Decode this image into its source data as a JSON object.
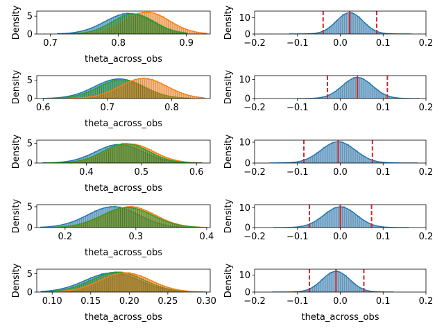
{
  "chart_data": [
    {
      "type": "histogram-kde",
      "row": 0,
      "col": 0,
      "xlabel": "theta_across_obs",
      "ylabel": "Density",
      "xlim": [
        0.68,
        0.935
      ],
      "ylim": [
        0,
        6.4
      ],
      "xticks": [
        {
          "v": 0.7,
          "label": "0.7"
        },
        {
          "v": 0.8,
          "label": "0.8"
        },
        {
          "v": 0.9,
          "label": "0.9"
        }
      ],
      "yticks": [
        {
          "v": 0,
          "label": "0"
        },
        {
          "v": 5,
          "label": "5"
        }
      ],
      "series": [
        {
          "color": "#1f77b4",
          "mean": 0.815,
          "sd": 0.035,
          "peak": 5.7,
          "range": [
            0.71,
            0.9
          ]
        },
        {
          "color": "#ff7f0e",
          "mean": 0.842,
          "sd": 0.033,
          "peak": 6.1,
          "range": [
            0.73,
            0.93
          ]
        },
        {
          "color": "#2ca02c",
          "mean": 0.822,
          "sd": 0.031,
          "peak": 5.6,
          "range": [
            0.72,
            0.9
          ]
        }
      ]
    },
    {
      "type": "histogram-kde",
      "row": 0,
      "col": 1,
      "xlabel": "",
      "ylabel": "Density",
      "xlim": [
        -0.2,
        0.2
      ],
      "ylim": [
        0,
        14
      ],
      "xticks": [
        {
          "v": -0.2,
          "label": "−0.2"
        },
        {
          "v": -0.1,
          "label": "−0.1"
        },
        {
          "v": 0,
          "label": "0.0"
        },
        {
          "v": 0.1,
          "label": "0.1"
        },
        {
          "v": 0.2,
          "label": "0.2"
        }
      ],
      "yticks": [
        {
          "v": 0,
          "label": "0"
        },
        {
          "v": 10,
          "label": "10"
        }
      ],
      "series": [
        {
          "color": "#1f77b4",
          "mean": 0.022,
          "sd": 0.031,
          "peak": 13,
          "range": [
            -0.12,
            0.165
          ]
        }
      ],
      "vlines": [
        {
          "v": -0.04,
          "style": "dashed"
        },
        {
          "v": 0.022,
          "style": "solid"
        },
        {
          "v": 0.085,
          "style": "dashed"
        }
      ]
    },
    {
      "type": "histogram-kde",
      "row": 1,
      "col": 0,
      "xlabel": "theta_across_obs",
      "ylabel": "Density",
      "xlim": [
        0.59,
        0.86
      ],
      "ylim": [
        0,
        6.2
      ],
      "xticks": [
        {
          "v": 0.6,
          "label": "0.6"
        },
        {
          "v": 0.7,
          "label": "0.7"
        },
        {
          "v": 0.8,
          "label": "0.8"
        }
      ],
      "yticks": [
        {
          "v": 0,
          "label": "0"
        },
        {
          "v": 5,
          "label": "5"
        }
      ],
      "series": [
        {
          "color": "#1f77b4",
          "mean": 0.718,
          "sd": 0.038,
          "peak": 5.3,
          "range": [
            0.6,
            0.83
          ]
        },
        {
          "color": "#2ca02c",
          "mean": 0.722,
          "sd": 0.036,
          "peak": 5.1,
          "range": [
            0.61,
            0.83
          ]
        },
        {
          "color": "#ff7f0e",
          "mean": 0.756,
          "sd": 0.037,
          "peak": 5.4,
          "range": [
            0.64,
            0.85
          ]
        }
      ]
    },
    {
      "type": "histogram-kde",
      "row": 1,
      "col": 1,
      "xlabel": "",
      "ylabel": "Density",
      "xlim": [
        -0.2,
        0.2
      ],
      "ylim": [
        0,
        12
      ],
      "xticks": [
        {
          "v": -0.2,
          "label": "−0.2"
        },
        {
          "v": -0.1,
          "label": "−0.1"
        },
        {
          "v": 0,
          "label": "0.0"
        },
        {
          "v": 0.1,
          "label": "0.1"
        },
        {
          "v": 0.2,
          "label": "0.2"
        }
      ],
      "yticks": [
        {
          "v": 0,
          "label": "0"
        },
        {
          "v": 10,
          "label": "10"
        }
      ],
      "series": [
        {
          "color": "#1f77b4",
          "mean": 0.04,
          "sd": 0.035,
          "peak": 11,
          "range": [
            -0.1,
            0.185
          ]
        }
      ],
      "vlines": [
        {
          "v": -0.03,
          "style": "dashed"
        },
        {
          "v": 0.04,
          "style": "solid"
        },
        {
          "v": 0.11,
          "style": "dashed"
        }
      ]
    },
    {
      "type": "histogram-kde",
      "row": 2,
      "col": 0,
      "xlabel": "theta_across_obs",
      "ylabel": "Density",
      "xlim": [
        0.31,
        0.625
      ],
      "ylim": [
        0,
        5.8
      ],
      "xticks": [
        {
          "v": 0.4,
          "label": "0.4"
        },
        {
          "v": 0.5,
          "label": "0.5"
        },
        {
          "v": 0.6,
          "label": "0.6"
        }
      ],
      "yticks": [
        {
          "v": 0,
          "label": "0"
        },
        {
          "v": 5,
          "label": "5"
        }
      ],
      "series": [
        {
          "color": "#1f77b4",
          "mean": 0.46,
          "sd": 0.043,
          "peak": 4.7,
          "range": [
            0.32,
            0.6
          ]
        },
        {
          "color": "#ff7f0e",
          "mean": 0.48,
          "sd": 0.042,
          "peak": 4.8,
          "range": [
            0.33,
            0.61
          ]
        },
        {
          "color": "#2ca02c",
          "mean": 0.472,
          "sd": 0.041,
          "peak": 4.9,
          "range": [
            0.33,
            0.61
          ]
        }
      ]
    },
    {
      "type": "histogram-kde",
      "row": 2,
      "col": 1,
      "xlabel": "",
      "ylabel": "Density",
      "xlim": [
        -0.2,
        0.2
      ],
      "ylim": [
        0,
        11
      ],
      "xticks": [
        {
          "v": -0.2,
          "label": "−0.2"
        },
        {
          "v": -0.1,
          "label": "−0.1"
        },
        {
          "v": 0,
          "label": "0.0"
        },
        {
          "v": 0.1,
          "label": "0.1"
        },
        {
          "v": 0.2,
          "label": "0.2"
        }
      ],
      "yticks": [
        {
          "v": 0,
          "label": "0"
        },
        {
          "v": 10,
          "label": "10"
        }
      ],
      "series": [
        {
          "color": "#1f77b4",
          "mean": -0.005,
          "sd": 0.04,
          "peak": 10.2,
          "range": [
            -0.165,
            0.18
          ]
        }
      ],
      "vlines": [
        {
          "v": -0.085,
          "style": "dashed"
        },
        {
          "v": -0.005,
          "style": "solid"
        },
        {
          "v": 0.075,
          "style": "dashed"
        }
      ]
    },
    {
      "type": "histogram-kde",
      "row": 3,
      "col": 0,
      "xlabel": "theta_across_obs",
      "ylabel": "Density",
      "xlim": [
        0.16,
        0.405
      ],
      "ylim": [
        0,
        5.5
      ],
      "xticks": [
        {
          "v": 0.2,
          "label": "0.2"
        },
        {
          "v": 0.3,
          "label": "0.3"
        },
        {
          "v": 0.4,
          "label": "0.4"
        }
      ],
      "yticks": [
        {
          "v": 0,
          "label": "0"
        },
        {
          "v": 5,
          "label": "5"
        }
      ],
      "series": [
        {
          "color": "#1f77b4",
          "mean": 0.268,
          "sd": 0.036,
          "peak": 5.0,
          "range": [
            0.165,
            0.39
          ]
        },
        {
          "color": "#ff7f0e",
          "mean": 0.292,
          "sd": 0.035,
          "peak": 5.0,
          "range": [
            0.18,
            0.4
          ]
        },
        {
          "color": "#2ca02c",
          "mean": 0.288,
          "sd": 0.036,
          "peak": 4.8,
          "range": [
            0.18,
            0.39
          ]
        }
      ]
    },
    {
      "type": "histogram-kde",
      "row": 3,
      "col": 1,
      "xlabel": "",
      "ylabel": "Density",
      "xlim": [
        -0.2,
        0.2
      ],
      "ylim": [
        0,
        11.5
      ],
      "xticks": [
        {
          "v": -0.2,
          "label": "−0.2"
        },
        {
          "v": -0.1,
          "label": "−0.1"
        },
        {
          "v": 0,
          "label": "0.0"
        },
        {
          "v": 0.1,
          "label": "0.1"
        },
        {
          "v": 0.2,
          "label": "0.2"
        }
      ],
      "yticks": [
        {
          "v": 0,
          "label": "0"
        },
        {
          "v": 10,
          "label": "10"
        }
      ],
      "series": [
        {
          "color": "#1f77b4",
          "mean": 0.0,
          "sd": 0.038,
          "peak": 10.4,
          "range": [
            -0.155,
            0.16
          ]
        }
      ],
      "vlines": [
        {
          "v": -0.072,
          "style": "dashed"
        },
        {
          "v": 0.0,
          "style": "solid"
        },
        {
          "v": 0.073,
          "style": "dashed"
        }
      ]
    },
    {
      "type": "histogram-kde",
      "row": 4,
      "col": 0,
      "xlabel": "theta_across_obs",
      "ylabel": "Density",
      "xlim": [
        0.08,
        0.305
      ],
      "ylim": [
        0,
        6.2
      ],
      "xticks": [
        {
          "v": 0.1,
          "label": "0.10"
        },
        {
          "v": 0.15,
          "label": "0.15"
        },
        {
          "v": 0.2,
          "label": "0.20"
        },
        {
          "v": 0.25,
          "label": "0.25"
        },
        {
          "v": 0.3,
          "label": "0.30"
        }
      ],
      "yticks": [
        {
          "v": 0,
          "label": "0"
        },
        {
          "v": 5,
          "label": "5"
        }
      ],
      "series": [
        {
          "color": "#1f77b4",
          "mean": 0.178,
          "sd": 0.035,
          "peak": 5.2,
          "range": [
            0.085,
            0.29
          ]
        },
        {
          "color": "#2ca02c",
          "mean": 0.185,
          "sd": 0.034,
          "peak": 5.4,
          "range": [
            0.09,
            0.29
          ]
        },
        {
          "color": "#ff7f0e",
          "mean": 0.195,
          "sd": 0.033,
          "peak": 5.2,
          "range": [
            0.1,
            0.3
          ]
        }
      ]
    },
    {
      "type": "histogram-kde",
      "row": 4,
      "col": 1,
      "xlabel": "theta_across_obs",
      "ylabel": "Density",
      "xlim": [
        -0.2,
        0.2
      ],
      "ylim": [
        0,
        13.5
      ],
      "xticks": [
        {
          "v": -0.2,
          "label": "−0.2"
        },
        {
          "v": -0.1,
          "label": "−0.1"
        },
        {
          "v": 0,
          "label": "0.0"
        },
        {
          "v": 0.1,
          "label": "0.1"
        },
        {
          "v": 0.2,
          "label": "0.2"
        }
      ],
      "yticks": [
        {
          "v": 0,
          "label": "0"
        },
        {
          "v": 10,
          "label": "10"
        }
      ],
      "series": [
        {
          "color": "#1f77b4",
          "mean": -0.01,
          "sd": 0.032,
          "peak": 12.2,
          "range": [
            -0.16,
            0.125
          ]
        }
      ],
      "vlines": [
        {
          "v": -0.072,
          "style": "dashed"
        },
        {
          "v": -0.01,
          "style": "solid"
        },
        {
          "v": 0.055,
          "style": "dashed"
        }
      ]
    }
  ],
  "colors": {
    "vline": "#d62728",
    "axis": "#000000"
  }
}
